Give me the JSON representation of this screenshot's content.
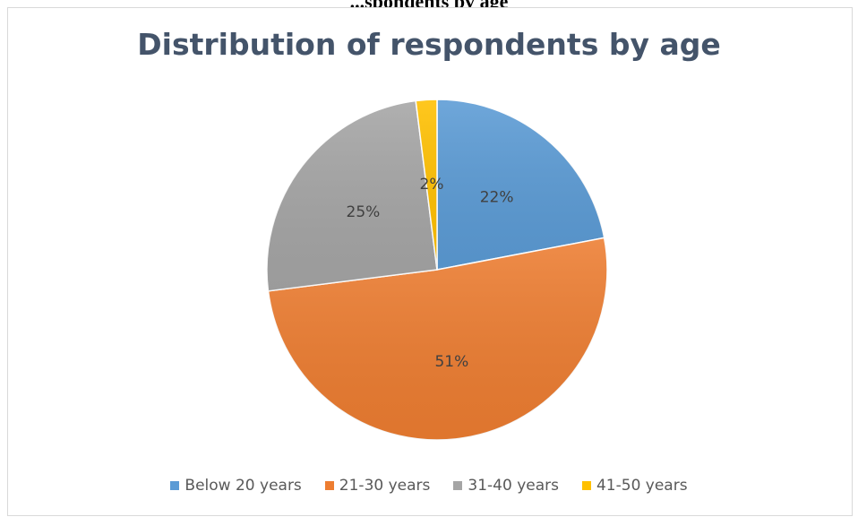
{
  "page": {
    "heading": "...spondents by age"
  },
  "chart_data": {
    "type": "pie",
    "title": "Distribution of respondents by age",
    "categories": [
      "Below 20 years",
      "21-30 years",
      "31-40 years",
      "41-50 years"
    ],
    "values": [
      22,
      51,
      25,
      2
    ],
    "labels": [
      "22%",
      "51%",
      "25%",
      "2%"
    ],
    "colors": [
      "#5b9bd5",
      "#ed7d31",
      "#a5a5a5",
      "#ffc000"
    ],
    "legend_position": "bottom"
  }
}
